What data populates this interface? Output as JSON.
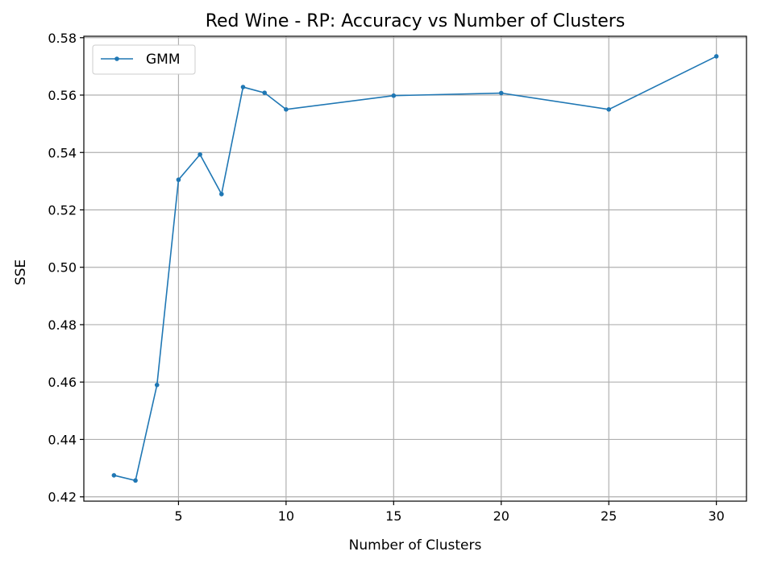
{
  "chart_data": {
    "type": "line",
    "title": "Red Wine - RP: Accuracy vs Number of Clusters",
    "xlabel": "Number of Clusters",
    "ylabel": "SSE",
    "xlim": [
      0.6,
      31.4
    ],
    "ylim": [
      0.4185,
      0.5805
    ],
    "xticks": [
      5,
      10,
      15,
      20,
      25,
      30
    ],
    "yticks": [
      0.42,
      0.44,
      0.46,
      0.48,
      0.5,
      0.52,
      0.54,
      0.56,
      0.58
    ],
    "ytick_labels": [
      "0.42",
      "0.44",
      "0.46",
      "0.48",
      "0.50",
      "0.52",
      "0.54",
      "0.56",
      "0.58"
    ],
    "grid": true,
    "legend_position": "top-left",
    "series": [
      {
        "name": "GMM",
        "color": "#1f77b4",
        "x": [
          2,
          3,
          4,
          5,
          6,
          7,
          8,
          9,
          10,
          15,
          20,
          25,
          30
        ],
        "y": [
          0.4275,
          0.4257,
          0.459,
          0.5305,
          0.5393,
          0.5255,
          0.5628,
          0.5608,
          0.555,
          0.5598,
          0.5607,
          0.555,
          0.5735
        ]
      }
    ]
  }
}
